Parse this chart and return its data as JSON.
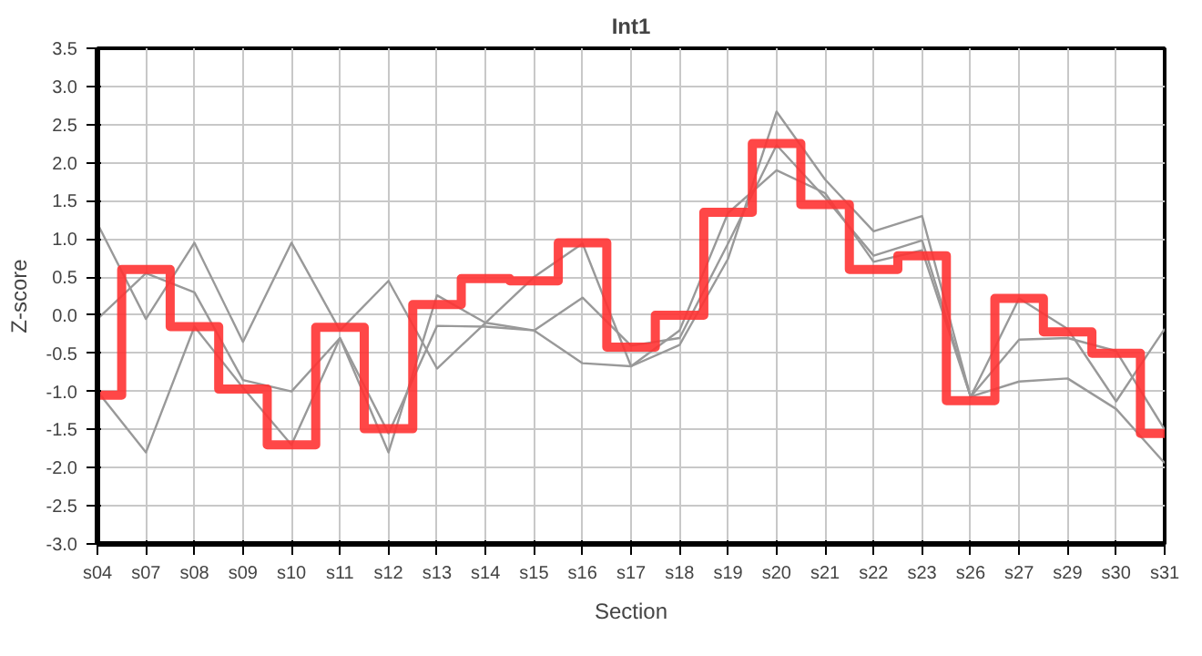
{
  "chart_data": {
    "type": "line",
    "title": "Int1",
    "xlabel": "Section",
    "ylabel": "Z-score",
    "categories": [
      "s04",
      "s07",
      "s08",
      "s09",
      "s10",
      "s11",
      "s12",
      "s13",
      "s14",
      "s15",
      "s16",
      "s17",
      "s18",
      "s19",
      "s20",
      "s21",
      "s22",
      "s23",
      "s26",
      "s27",
      "s29",
      "s30",
      "s31"
    ],
    "ylim": [
      -3.0,
      3.5
    ],
    "yticks": [
      {
        "value": -3.0,
        "label": "-3.0"
      },
      {
        "value": -2.5,
        "label": "-2.5"
      },
      {
        "value": -2.0,
        "label": "-2.0"
      },
      {
        "value": -1.5,
        "label": "-1.5"
      },
      {
        "value": -1.0,
        "label": "-1.0"
      },
      {
        "value": -0.5,
        "label": "-0.5"
      },
      {
        "value": 0,
        "label": "0.0"
      },
      {
        "value": 0.5,
        "label": "0.5"
      },
      {
        "value": 1.0,
        "label": "1.0"
      },
      {
        "value": 1.5,
        "label": "1.5"
      },
      {
        "value": 2.0,
        "label": "2.0"
      },
      {
        "value": 2.5,
        "label": "2.5"
      },
      {
        "value": 3.0,
        "label": "3.0"
      },
      {
        "value": 3.5,
        "label": "3.5"
      }
    ],
    "grid": true,
    "series": [
      {
        "color": "#999999",
        "values": [
          1.2,
          -0.05,
          0.95,
          -0.35,
          0.95,
          -0.2,
          0.45,
          -0.7,
          -0.1,
          0.5,
          0.94,
          -0.67,
          -0.39,
          0.74,
          2.67,
          1.78,
          1.1,
          1.3,
          -1.07,
          0.22,
          -0.18,
          -1.13,
          -0.18
        ]
      },
      {
        "color": "#999999",
        "values": [
          -0.05,
          0.55,
          0.3,
          -0.85,
          -1.0,
          -0.3,
          -1.8,
          0.26,
          -0.1,
          -0.2,
          0.23,
          -0.4,
          -0.3,
          0.94,
          2.23,
          1.54,
          0.78,
          0.98,
          -1.07,
          -0.32,
          -0.3,
          -0.47,
          -1.5
        ]
      },
      {
        "color": "#999999",
        "values": [
          -1.0,
          -1.8,
          -0.15,
          -0.95,
          -1.7,
          -0.3,
          -1.55,
          -0.14,
          -0.15,
          -0.2,
          -0.63,
          -0.67,
          -0.2,
          1.34,
          1.9,
          1.6,
          0.7,
          0.85,
          -1.07,
          -0.87,
          -0.83,
          -1.23,
          -1.94
        ]
      },
      {
        "type": "step",
        "color": "#ff3333",
        "values": [
          -1.05,
          0.6,
          -0.15,
          -0.97,
          -1.7,
          -0.16,
          -1.49,
          0.14,
          0.48,
          0.45,
          0.95,
          -0.42,
          0.0,
          1.35,
          2.25,
          1.45,
          0.6,
          0.78,
          -1.12,
          0.22,
          -0.22,
          -0.5,
          -1.55
        ]
      }
    ]
  }
}
